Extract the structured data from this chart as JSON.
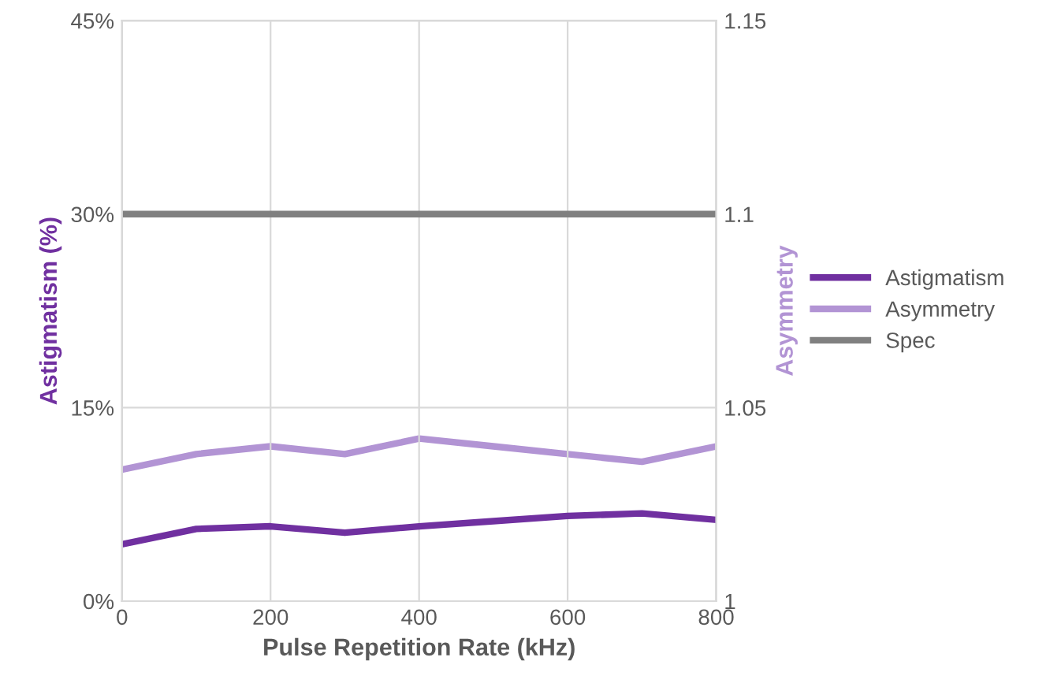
{
  "chart_data": {
    "type": "line",
    "xlabel": "Pulse Repetition Rate (kHz)",
    "ylabel": "Astigmatism (%)",
    "y2label": "Asymmetry",
    "x": [
      0,
      100,
      200,
      300,
      400,
      500,
      600,
      700,
      800
    ],
    "series": [
      {
        "name": "Astigmatism",
        "color": "#7030a0",
        "values": [
          4.4,
          5.6,
          5.8,
          5.3,
          5.8,
          6.2,
          6.6,
          6.8,
          6.3
        ]
      },
      {
        "name": "Asymmetry",
        "color": "#b294d4",
        "axis": "y2",
        "values": [
          1.034,
          1.038,
          1.04,
          1.038,
          1.042,
          1.04,
          1.038,
          1.036,
          1.04
        ]
      },
      {
        "name": "Spec",
        "color": "#808080",
        "x": [
          0,
          800
        ],
        "values": [
          30,
          30
        ]
      }
    ],
    "xlim": [
      0,
      800
    ],
    "xticks": [
      0,
      200,
      400,
      600,
      800
    ],
    "ylim": [
      0,
      45
    ],
    "yticks": [
      {
        "value": 0,
        "label": "0%"
      },
      {
        "value": 15,
        "label": "15%"
      },
      {
        "value": 30,
        "label": "30%"
      },
      {
        "value": 45,
        "label": "45%"
      }
    ],
    "y2lim": [
      1,
      1.15
    ],
    "y2ticks": [
      {
        "value": 1,
        "label": "1"
      },
      {
        "value": 1.05,
        "label": "1.05"
      },
      {
        "value": 1.1,
        "label": "1.1"
      },
      {
        "value": 1.15,
        "label": "1.15"
      }
    ],
    "grid": true,
    "legend": "right",
    "marker": "none",
    "line_style": "solid"
  }
}
